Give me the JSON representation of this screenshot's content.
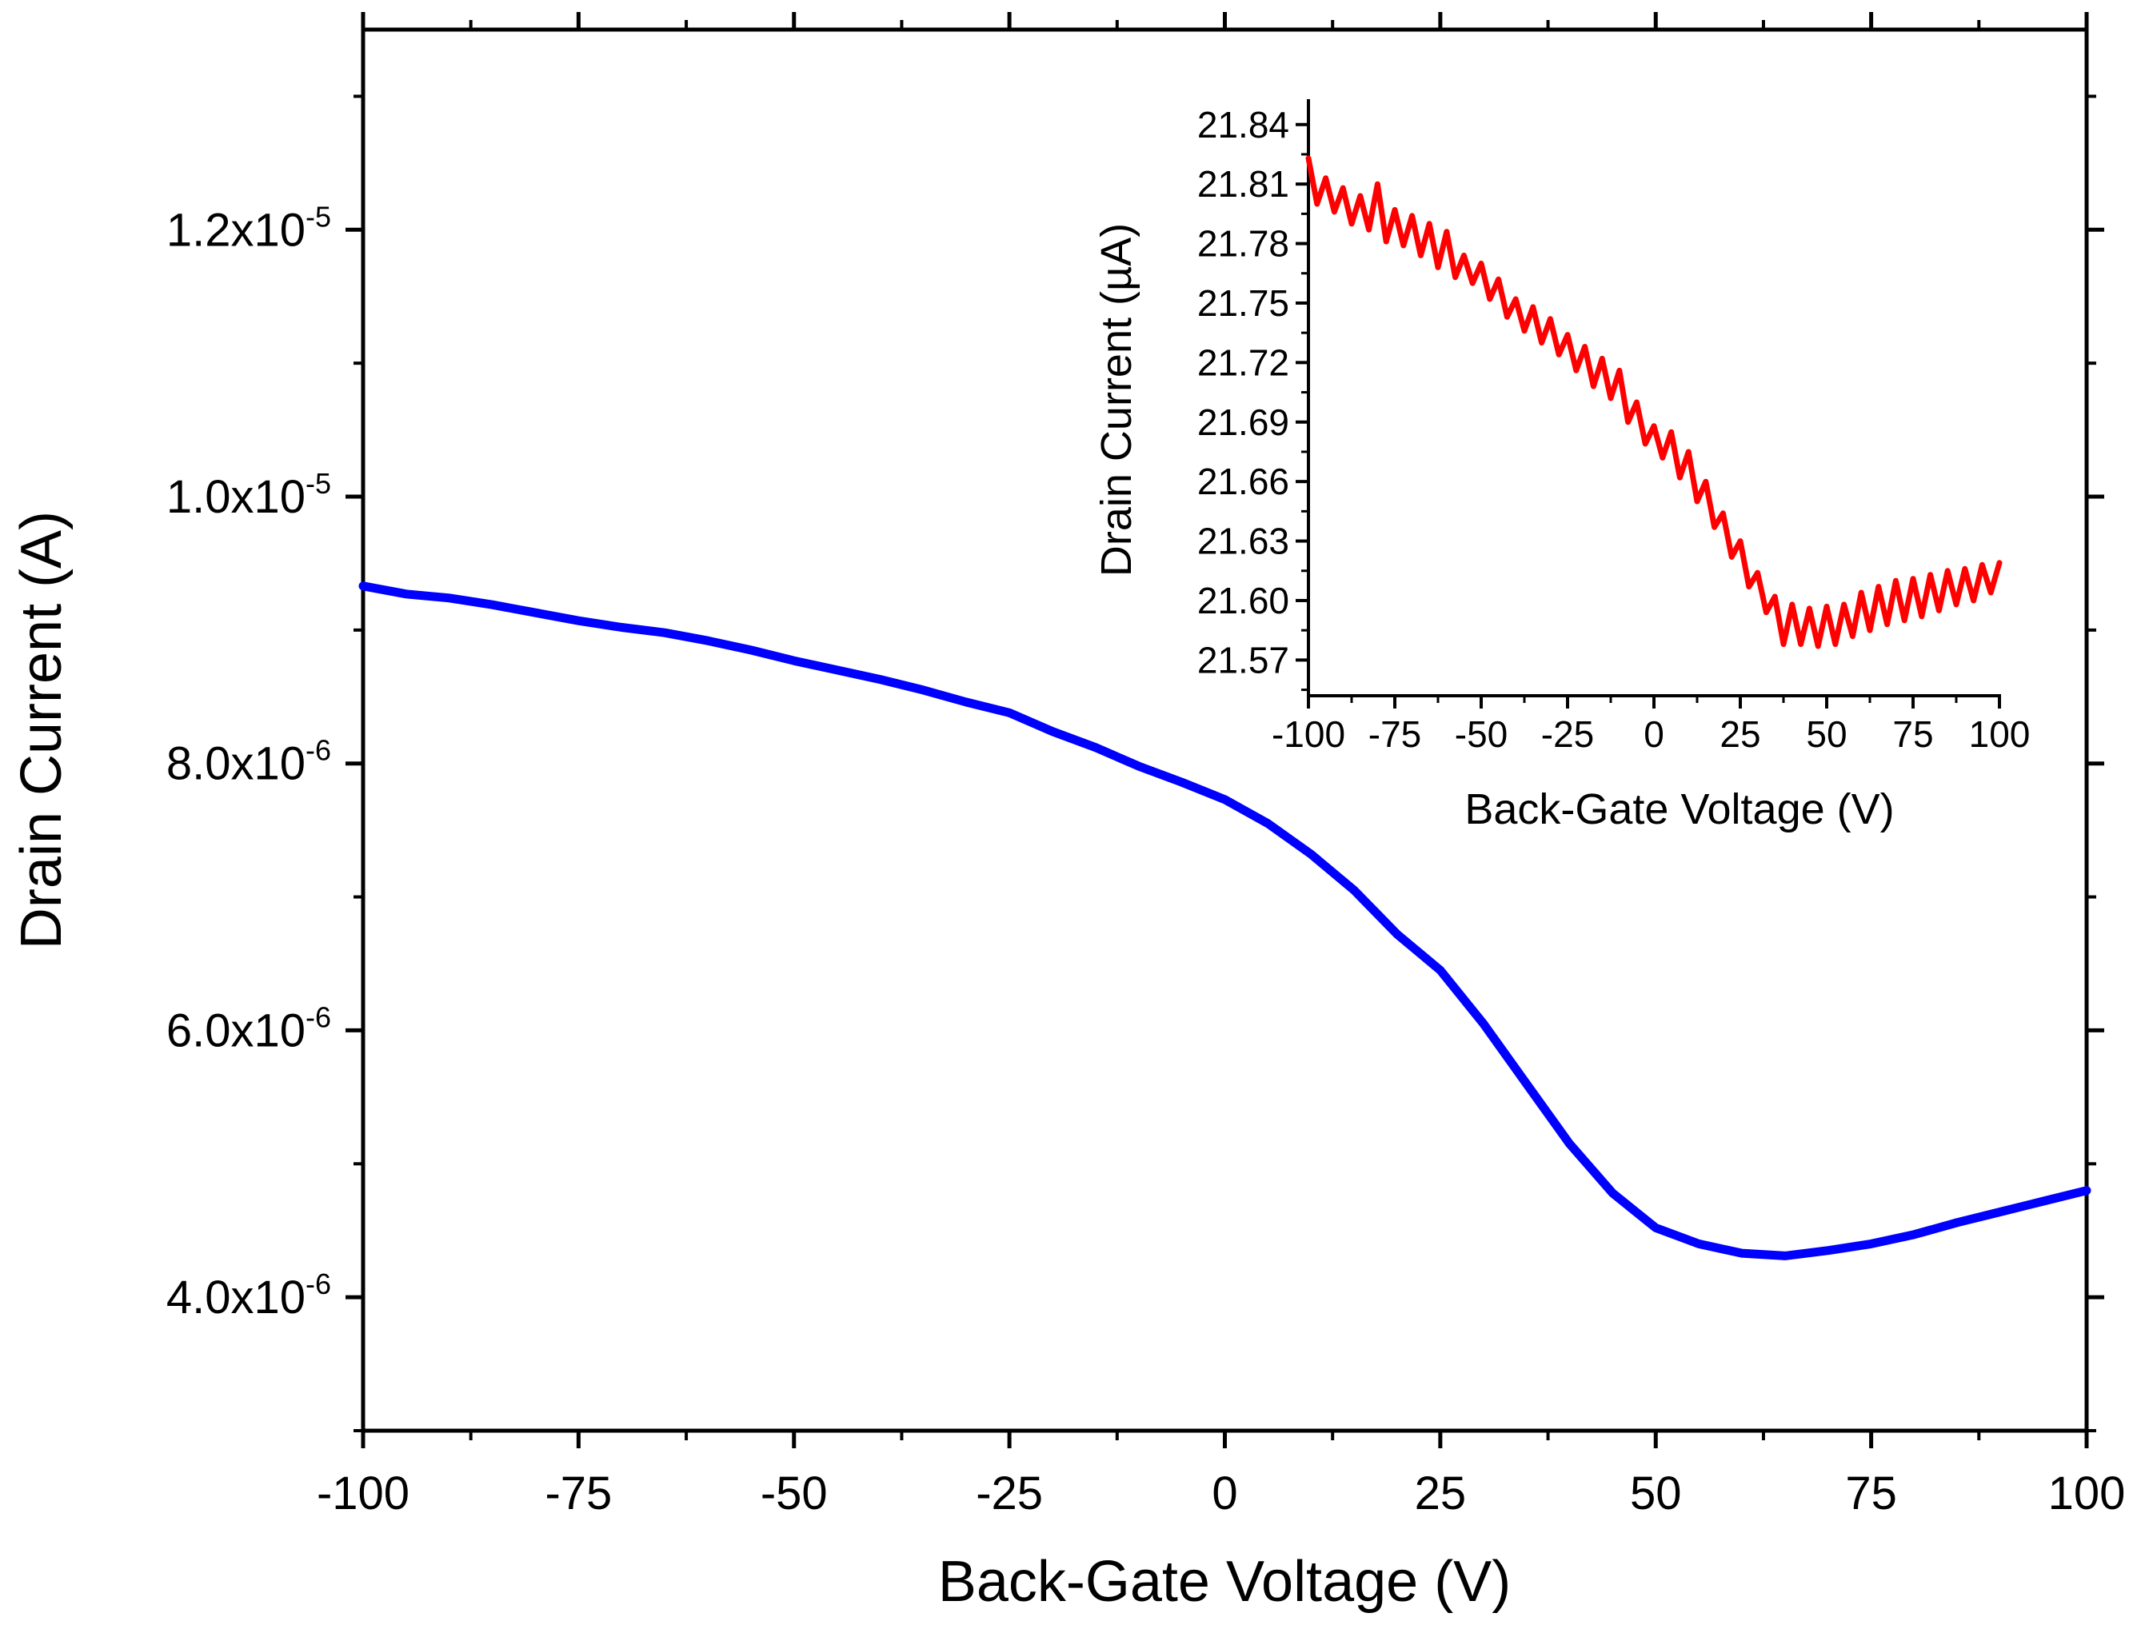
{
  "colors": {
    "main_series": "#0000ff",
    "inset_series": "#ff0000",
    "axes": "#000000",
    "background": "#ffffff"
  },
  "chart_data": [
    {
      "id": "main",
      "type": "line",
      "title": "",
      "xlabel": "Back-Gate Voltage (V)",
      "ylabel": "Drain Current (A)",
      "xlim": [
        -100,
        100
      ],
      "ylim": [
        3e-06,
        1.35e-05
      ],
      "x_ticks": [
        -100,
        -75,
        -50,
        -25,
        0,
        25,
        50,
        75,
        100
      ],
      "x_tick_labels": [
        "-100",
        "-75",
        "-50",
        "-25",
        "0",
        "25",
        "50",
        "75",
        "100"
      ],
      "y_ticks": [
        {
          "value": 4e-06,
          "mantissa": "4.0x10",
          "exponent": "-6"
        },
        {
          "value": 6e-06,
          "mantissa": "6.0x10",
          "exponent": "-6"
        },
        {
          "value": 8e-06,
          "mantissa": "8.0x10",
          "exponent": "-6"
        },
        {
          "value": 1e-05,
          "mantissa": "1.0x10",
          "exponent": "-5"
        },
        {
          "value": 1.2e-05,
          "mantissa": "1.2x10",
          "exponent": "-5"
        }
      ],
      "series": [
        {
          "name": "Drain Current",
          "color": "#0000ff",
          "x": [
            -100,
            -95,
            -90,
            -85,
            -80,
            -75,
            -70,
            -65,
            -60,
            -55,
            -50,
            -45,
            -40,
            -35,
            -30,
            -25,
            -20,
            -15,
            -10,
            -5,
            0,
            5,
            10,
            15,
            20,
            25,
            30,
            35,
            40,
            45,
            50,
            55,
            60,
            65,
            70,
            75,
            80,
            85,
            90,
            95,
            100
          ],
          "y": [
            9.33e-06,
            9.27e-06,
            9.24e-06,
            9.19e-06,
            9.13e-06,
            9.07e-06,
            9.02e-06,
            8.98e-06,
            8.92e-06,
            8.85e-06,
            8.77e-06,
            8.7e-06,
            8.63e-06,
            8.55e-06,
            8.46e-06,
            8.38e-06,
            8.24e-06,
            8.12e-06,
            7.98e-06,
            7.86e-06,
            7.73e-06,
            7.55e-06,
            7.32e-06,
            7.05e-06,
            6.72e-06,
            6.45e-06,
            6.05e-06,
            5.6e-06,
            5.15e-06,
            4.78e-06,
            4.52e-06,
            4.4e-06,
            4.33e-06,
            4.31e-06,
            4.35e-06,
            4.4e-06,
            4.47e-06,
            4.56e-06,
            4.64e-06,
            4.72e-06,
            4.8e-06
          ]
        }
      ]
    },
    {
      "id": "inset",
      "type": "line",
      "title": "",
      "xlabel": "Back-Gate Voltage (V)",
      "ylabel": "Drain Current (µA)",
      "xlim": [
        -100,
        100
      ],
      "ylim": [
        21.552,
        21.852
      ],
      "x_ticks": [
        -100,
        -75,
        -50,
        -25,
        0,
        25,
        50,
        75,
        100
      ],
      "x_tick_labels": [
        "-100",
        "-75",
        "-50",
        "-25",
        "0",
        "25",
        "50",
        "75",
        "100"
      ],
      "y_ticks": [
        21.57,
        21.6,
        21.63,
        21.66,
        21.69,
        21.72,
        21.75,
        21.78,
        21.81,
        21.84
      ],
      "y_tick_labels": [
        "21.57",
        "21.60",
        "21.63",
        "21.66",
        "21.69",
        "21.72",
        "21.75",
        "21.78",
        "21.81",
        "21.84"
      ],
      "series": [
        {
          "name": "Drain Current",
          "color": "#ff0000",
          "x": [
            -100,
            -97.5,
            -95,
            -92.5,
            -90,
            -87.5,
            -85,
            -82.5,
            -80,
            -77.5,
            -75,
            -72.5,
            -70,
            -67.5,
            -65,
            -62.5,
            -60,
            -57.5,
            -55,
            -52.5,
            -50,
            -47.5,
            -45,
            -42.5,
            -40,
            -37.5,
            -35,
            -32.5,
            -30,
            -27.5,
            -25,
            -22.5,
            -20,
            -17.5,
            -15,
            -12.5,
            -10,
            -7.5,
            -5,
            -2.5,
            0,
            2.5,
            5,
            7.5,
            10,
            12.5,
            15,
            17.5,
            20,
            22.5,
            25,
            27.5,
            30,
            32.5,
            35,
            37.5,
            40,
            42.5,
            45,
            47.5,
            50,
            52.5,
            55,
            57.5,
            60,
            62.5,
            65,
            67.5,
            70,
            72.5,
            75,
            77.5,
            80,
            82.5,
            85,
            87.5,
            90,
            92.5,
            95,
            97.5,
            100
          ],
          "y": [
            21.823,
            21.8,
            21.813,
            21.796,
            21.808,
            21.79,
            21.804,
            21.787,
            21.81,
            21.781,
            21.797,
            21.779,
            21.794,
            21.774,
            21.79,
            21.768,
            21.786,
            21.763,
            21.774,
            21.76,
            21.77,
            21.752,
            21.762,
            21.743,
            21.752,
            21.736,
            21.748,
            21.73,
            21.742,
            21.724,
            21.734,
            21.716,
            21.728,
            21.708,
            21.722,
            21.702,
            21.716,
            21.69,
            21.7,
            21.679,
            21.688,
            21.672,
            21.685,
            21.662,
            21.675,
            21.65,
            21.66,
            21.637,
            21.644,
            21.622,
            21.63,
            21.607,
            21.614,
            21.594,
            21.602,
            21.578,
            21.598,
            21.578,
            21.596,
            21.577,
            21.597,
            21.578,
            21.598,
            21.582,
            21.604,
            21.585,
            21.607,
            21.588,
            21.61,
            21.59,
            21.611,
            21.592,
            21.613,
            21.595,
            21.615,
            21.598,
            21.616,
            21.6,
            21.618,
            21.604,
            21.619
          ]
        }
      ]
    }
  ]
}
